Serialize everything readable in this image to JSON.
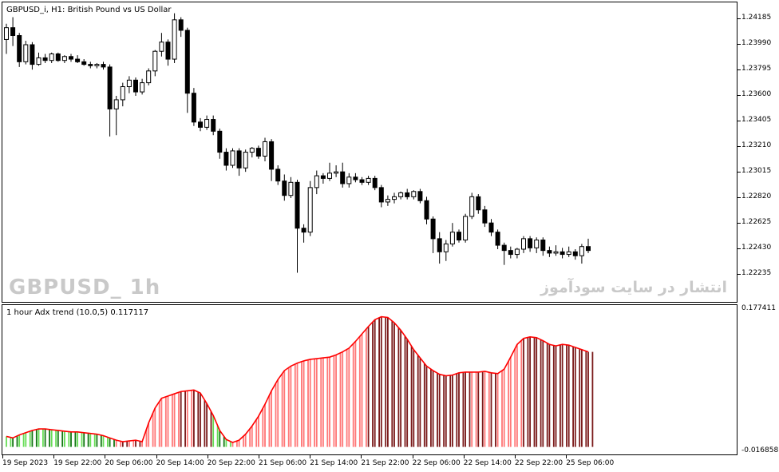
{
  "main_chart": {
    "symbol_title": "GBPUSD_i, H1:  British Pound vs US Dollar",
    "watermark_left": "GBPUSD_ 1h",
    "watermark_right": "انتشار در سایت سودآموز",
    "price_labels": [
      "1.24185",
      "1.23990",
      "1.23795",
      "1.23600",
      "1.23405",
      "1.23210",
      "1.23015",
      "1.22820",
      "1.22625",
      "1.22430",
      "1.22235"
    ],
    "colors": {
      "bull_body": "#ffffff",
      "bear_body": "#000000",
      "wick": "#000000"
    }
  },
  "chart_data": [
    {
      "type": "candlestick",
      "title": "GBPUSD_i, H1:  British Pound vs US Dollar",
      "x_tick_labels": [
        "19 Sep 2023",
        "19 Sep 22:00",
        "20 Sep 06:00",
        "20 Sep 14:00",
        "20 Sep 22:00",
        "21 Sep 06:00",
        "21 Sep 14:00",
        "21 Sep 22:00",
        "22 Sep 06:00",
        "22 Sep 14:00",
        "22 Sep 22:00",
        "25 Sep 06:00"
      ],
      "y_tick_labels": [
        "1.24185",
        "1.23990",
        "1.23795",
        "1.23600",
        "1.23405",
        "1.23210",
        "1.23015",
        "1.22820",
        "1.22625",
        "1.22430",
        "1.22235"
      ],
      "ylim": [
        1.2216,
        1.243
      ],
      "candles": [
        [
          1.2403,
          1.2415,
          1.2392,
          1.2412
        ],
        [
          1.2412,
          1.242,
          1.2398,
          1.2406
        ],
        [
          1.2406,
          1.2408,
          1.2382,
          1.2386
        ],
        [
          1.2386,
          1.2402,
          1.2384,
          1.2399
        ],
        [
          1.2399,
          1.2401,
          1.238,
          1.2384
        ],
        [
          1.2384,
          1.2393,
          1.2383,
          1.2389
        ],
        [
          1.2389,
          1.2392,
          1.2385,
          1.2387
        ],
        [
          1.2387,
          1.2393,
          1.2385,
          1.2392
        ],
        [
          1.2392,
          1.2393,
          1.2386,
          1.2387
        ],
        [
          1.2387,
          1.2391,
          1.2385,
          1.239
        ],
        [
          1.239,
          1.2392,
          1.2386,
          1.2388
        ],
        [
          1.2388,
          1.2391,
          1.2385,
          1.2386
        ],
        [
          1.2386,
          1.2388,
          1.2383,
          1.2384
        ],
        [
          1.2384,
          1.2386,
          1.2381,
          1.2383
        ],
        [
          1.2383,
          1.2385,
          1.2381,
          1.2384
        ],
        [
          1.2384,
          1.2386,
          1.238,
          1.2382
        ],
        [
          1.2382,
          1.2384,
          1.2329,
          1.235
        ],
        [
          1.235,
          1.236,
          1.233,
          1.2357
        ],
        [
          1.2357,
          1.237,
          1.2352,
          1.2367
        ],
        [
          1.2367,
          1.2375,
          1.2362,
          1.2372
        ],
        [
          1.2372,
          1.2374,
          1.236,
          1.2363
        ],
        [
          1.2363,
          1.2373,
          1.2361,
          1.237
        ],
        [
          1.237,
          1.2381,
          1.2368,
          1.2379
        ],
        [
          1.2379,
          1.2395,
          1.2375,
          1.2394
        ],
        [
          1.2394,
          1.2408,
          1.239,
          1.2401
        ],
        [
          1.2401,
          1.2403,
          1.2383,
          1.2388
        ],
        [
          1.2388,
          1.2423,
          1.2385,
          1.2418
        ],
        [
          1.2418,
          1.242,
          1.2405,
          1.241
        ],
        [
          1.241,
          1.2412,
          1.2347,
          1.2362
        ],
        [
          1.2362,
          1.2366,
          1.2337,
          1.234
        ],
        [
          1.234,
          1.2343,
          1.2333,
          1.2336
        ],
        [
          1.2336,
          1.2345,
          1.2334,
          1.2342
        ],
        [
          1.2342,
          1.2345,
          1.233,
          1.2333
        ],
        [
          1.2333,
          1.2335,
          1.2312,
          1.2317
        ],
        [
          1.2317,
          1.232,
          1.2303,
          1.2307
        ],
        [
          1.2307,
          1.232,
          1.2305,
          1.2318
        ],
        [
          1.2318,
          1.232,
          1.2299,
          1.2305
        ],
        [
          1.2305,
          1.2319,
          1.2302,
          1.2317
        ],
        [
          1.2317,
          1.2321,
          1.2313,
          1.232
        ],
        [
          1.232,
          1.2322,
          1.2312,
          1.2314
        ],
        [
          1.2314,
          1.2328,
          1.231,
          1.2325
        ],
        [
          1.2325,
          1.2327,
          1.2295,
          1.2304
        ],
        [
          1.2304,
          1.2307,
          1.2292,
          1.2295
        ],
        [
          1.2295,
          1.23,
          1.228,
          1.2284
        ],
        [
          1.2284,
          1.2298,
          1.2282,
          1.2294
        ],
        [
          1.2294,
          1.2296,
          1.2225,
          1.2259
        ],
        [
          1.2259,
          1.2262,
          1.2248,
          1.2256
        ],
        [
          1.2256,
          1.2295,
          1.2253,
          1.229
        ],
        [
          1.229,
          1.2303,
          1.2285,
          1.2299
        ],
        [
          1.2299,
          1.2301,
          1.2293,
          1.2297
        ],
        [
          1.2297,
          1.2309,
          1.2295,
          1.2301
        ],
        [
          1.2301,
          1.2307,
          1.2298,
          1.2302
        ],
        [
          1.2302,
          1.2309,
          1.229,
          1.2293
        ],
        [
          1.2293,
          1.2301,
          1.229,
          1.2298
        ],
        [
          1.2298,
          1.2301,
          1.2294,
          1.2296
        ],
        [
          1.2296,
          1.2298,
          1.2292,
          1.2294
        ],
        [
          1.2294,
          1.2299,
          1.2292,
          1.2297
        ],
        [
          1.2297,
          1.2299,
          1.2288,
          1.229
        ],
        [
          1.229,
          1.2292,
          1.2275,
          1.2279
        ],
        [
          1.2279,
          1.2284,
          1.2276,
          1.2281
        ],
        [
          1.2281,
          1.2286,
          1.2278,
          1.2283
        ],
        [
          1.2283,
          1.2287,
          1.2281,
          1.2286
        ],
        [
          1.2286,
          1.2289,
          1.2281,
          1.2283
        ],
        [
          1.2283,
          1.2288,
          1.2281,
          1.2287
        ],
        [
          1.2287,
          1.2289,
          1.2278,
          1.228
        ],
        [
          1.228,
          1.2283,
          1.2262,
          1.2266
        ],
        [
          1.2266,
          1.2268,
          1.224,
          1.2251
        ],
        [
          1.2251,
          1.2256,
          1.2232,
          1.2241
        ],
        [
          1.2241,
          1.225,
          1.2234,
          1.2247
        ],
        [
          1.2247,
          1.2263,
          1.2245,
          1.2256
        ],
        [
          1.2256,
          1.2258,
          1.2248,
          1.225
        ],
        [
          1.225,
          1.227,
          1.2248,
          1.2268
        ],
        [
          1.2268,
          1.2286,
          1.2266,
          1.2283
        ],
        [
          1.2283,
          1.2285,
          1.227,
          1.2273
        ],
        [
          1.2273,
          1.2276,
          1.226,
          1.2263
        ],
        [
          1.2263,
          1.2266,
          1.2253,
          1.2256
        ],
        [
          1.2256,
          1.2258,
          1.2243,
          1.2246
        ],
        [
          1.2246,
          1.2248,
          1.2231,
          1.2242
        ],
        [
          1.2242,
          1.2245,
          1.2236,
          1.2239
        ],
        [
          1.2239,
          1.2244,
          1.2236,
          1.2243
        ],
        [
          1.2243,
          1.2253,
          1.224,
          1.2251
        ],
        [
          1.2251,
          1.2253,
          1.2241,
          1.2244
        ],
        [
          1.2244,
          1.2252,
          1.224,
          1.225
        ],
        [
          1.225,
          1.2252,
          1.2238,
          1.2242
        ],
        [
          1.2242,
          1.2245,
          1.2237,
          1.224
        ],
        [
          1.224,
          1.2246,
          1.2238,
          1.2241
        ],
        [
          1.2241,
          1.2244,
          1.2236,
          1.2239
        ],
        [
          1.2239,
          1.2245,
          1.2237,
          1.2241
        ],
        [
          1.2241,
          1.2243,
          1.2235,
          1.2238
        ],
        [
          1.2238,
          1.2247,
          1.2232,
          1.2245
        ],
        [
          1.2245,
          1.2251,
          1.224,
          1.2242
        ]
      ],
      "candle_format": [
        "open",
        "high",
        "low",
        "close"
      ]
    },
    {
      "type": "bar",
      "title": "1 hour Adx trend (10.0,5) 0.117117",
      "y_tick_labels": [
        "0.177411",
        "-0.016858"
      ],
      "ylim": [
        -0.016858,
        0.177411
      ],
      "baseline": -0.01,
      "colors": {
        "bull_light": "#66dd55",
        "bull_dark": "#117711",
        "bear_light": "#ff7777",
        "bear_dark": "#7a1a1a",
        "line": "#ff0000"
      },
      "values": [
        0.004,
        0.002,
        0.006,
        0.009,
        0.012,
        0.014,
        0.014,
        0.013,
        0.012,
        0.011,
        0.01,
        0.01,
        0.009,
        0.008,
        0.007,
        0.005,
        0.002,
        -0.001,
        -0.003,
        -0.002,
        -0.001,
        -0.003,
        0.022,
        0.042,
        0.055,
        0.058,
        0.061,
        0.064,
        0.065,
        0.066,
        0.062,
        0.048,
        0.032,
        0.012,
        0.0,
        -0.004,
        -0.001,
        0.007,
        0.018,
        0.031,
        0.047,
        0.065,
        0.08,
        0.092,
        0.098,
        0.102,
        0.105,
        0.107,
        0.108,
        0.109,
        0.11,
        0.113,
        0.117,
        0.122,
        0.131,
        0.141,
        0.151,
        0.16,
        0.164,
        0.163,
        0.156,
        0.146,
        0.134,
        0.12,
        0.109,
        0.098,
        0.092,
        0.087,
        0.085,
        0.086,
        0.089,
        0.09,
        0.09,
        0.09,
        0.091,
        0.089,
        0.088,
        0.094,
        0.11,
        0.127,
        0.135,
        0.137,
        0.136,
        0.132,
        0.127,
        0.125,
        0.127,
        0.126,
        0.123,
        0.12,
        0.117
      ],
      "value_colors": [
        "bull_light",
        "bull_dark",
        "bull_light",
        "bull_light",
        "bull_dark",
        "bull_light",
        "bull_dark",
        "bull_light",
        "bull_dark",
        "bull_light",
        "bull_dark",
        "bull_light",
        "bull_dark",
        "bull_light",
        "bull_dark",
        "bull_light",
        "bull_dark",
        "bear_light",
        "bear_dark",
        "bear_light",
        "bear_dark",
        "bear_light",
        "bear_light",
        "bear_light",
        "bear_light",
        "bear_light",
        "bear_light",
        "bear_dark",
        "bear_light",
        "bear_dark",
        "bear_dark",
        "bear_dark",
        "bull_light",
        "bull_dark",
        "bull_light",
        "bear_light",
        "bear_light",
        "bear_light",
        "bear_light",
        "bear_light",
        "bear_light",
        "bear_light",
        "bear_light",
        "bear_light",
        "bear_light",
        "bear_light",
        "bear_light",
        "bear_light",
        "bear_light",
        "bear_light",
        "bear_light",
        "bear_light",
        "bear_light",
        "bear_light",
        "bear_light",
        "bear_light",
        "bear_dark",
        "bear_dark",
        "bear_dark",
        "bear_dark",
        "bear_dark",
        "bear_dark",
        "bear_dark",
        "bear_dark",
        "bear_dark",
        "bear_dark",
        "bear_dark",
        "bear_dark",
        "bear_dark",
        "bear_dark",
        "bear_dark",
        "bear_dark",
        "bear_light",
        "bear_dark",
        "bear_light",
        "bear_dark",
        "bear_light",
        "bear_light",
        "bear_light",
        "bear_light",
        "bear_dark",
        "bear_dark",
        "bear_dark",
        "bear_dark",
        "bear_dark",
        "bear_dark",
        "bear_dark",
        "bear_dark",
        "bear_dark",
        "bear_dark",
        "bear_dark"
      ]
    }
  ],
  "indicator": {
    "title": "1 hour Adx trend (10.0,5) 0.117117",
    "scale_top": "0.177411",
    "scale_bottom": "-0.016858"
  },
  "time_axis": {
    "labels": [
      "19 Sep 2023",
      "19 Sep 22:00",
      "20 Sep 06:00",
      "20 Sep 14:00",
      "20 Sep 22:00",
      "21 Sep 06:00",
      "21 Sep 14:00",
      "21 Sep 22:00",
      "22 Sep 06:00",
      "22 Sep 14:00",
      "22 Sep 22:00",
      "25 Sep 06:00"
    ]
  }
}
